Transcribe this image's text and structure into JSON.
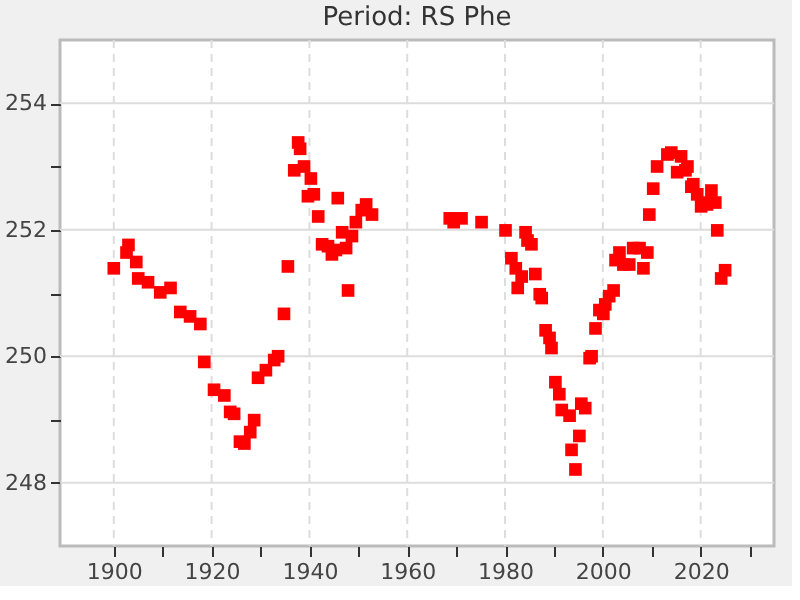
{
  "chart_data": {
    "type": "scatter",
    "title": "Period: RS Phe",
    "marker": "square",
    "grid": true,
    "xlim": [
      1889,
      2035
    ],
    "ylim": [
      247,
      255
    ],
    "xticks": [
      1900,
      {
        "value": 1910,
        "label": null
      },
      1920,
      {
        "value": 1930,
        "label": null
      },
      1940,
      {
        "value": 1950,
        "label": null
      },
      1960,
      {
        "value": 1970,
        "label": null
      },
      1980,
      {
        "value": 1990,
        "label": null
      },
      2000,
      {
        "value": 2010,
        "label": null
      },
      2020,
      {
        "value": 2030,
        "label": null
      }
    ],
    "yticks": [
      248,
      {
        "value": 249,
        "label": null
      },
      250,
      {
        "value": 251,
        "label": null
      },
      252,
      {
        "value": 253,
        "label": null
      },
      254
    ],
    "series": [
      {
        "color": "#ff0000",
        "x": [
          1900.0,
          1902.6,
          1903.0,
          1904.6,
          1905.0,
          1907.0,
          1909.5,
          1911.6,
          1913.6,
          1915.6,
          1917.7,
          1918.5,
          1920.5,
          1922.6,
          1923.8,
          1924.6,
          1925.8,
          1926.7,
          1927.9,
          1928.7,
          1929.5,
          1931.1,
          1932.8,
          1933.6,
          1934.8,
          1935.6,
          1936.9,
          1937.7,
          1938.1,
          1938.9,
          1939.7,
          1940.3,
          1940.9,
          1941.8,
          1942.6,
          1943.8,
          1944.6,
          1945.4,
          1945.8,
          1946.7,
          1947.5,
          1947.9,
          1948.7,
          1949.5,
          1950.7,
          1951.6,
          1952.8,
          1968.7,
          1969.5,
          1971.1,
          1975.2,
          1980.1,
          1981.3,
          1982.2,
          1982.6,
          1983.4,
          1984.2,
          1984.6,
          1985.4,
          1986.2,
          1987.1,
          1987.5,
          1988.3,
          1989.1,
          1989.5,
          1990.3,
          1991.1,
          1991.6,
          1993.2,
          1993.6,
          1994.4,
          1995.2,
          1995.6,
          1996.4,
          1997.3,
          1997.7,
          1998.5,
          1999.3,
          2000.1,
          2000.5,
          2001.3,
          2002.2,
          2002.6,
          2003.4,
          2004.2,
          2005.4,
          2006.2,
          2007.5,
          2008.3,
          2009.1,
          2009.5,
          2010.3,
          2011.1,
          2013.2,
          2014.0,
          2015.2,
          2016.0,
          2016.9,
          2017.3,
          2018.1,
          2018.5,
          2019.3,
          2020.1,
          2020.9,
          2021.3,
          2022.2,
          2023.0,
          2023.4,
          2024.2,
          2025.0
        ],
        "values": [
          251.39,
          251.64,
          251.76,
          251.49,
          251.23,
          251.17,
          251.01,
          251.08,
          250.7,
          250.63,
          250.51,
          249.91,
          249.47,
          249.38,
          249.12,
          249.09,
          248.65,
          248.62,
          248.8,
          248.99,
          249.66,
          249.78,
          249.94,
          250.0,
          250.67,
          251.42,
          252.94,
          253.38,
          253.28,
          253.0,
          252.53,
          252.81,
          252.56,
          252.21,
          251.77,
          251.74,
          251.61,
          251.68,
          252.5,
          251.96,
          251.71,
          251.04,
          251.9,
          252.12,
          252.31,
          252.4,
          252.24,
          252.18,
          252.12,
          252.18,
          252.12,
          251.99,
          251.55,
          251.39,
          251.08,
          251.26,
          251.96,
          251.83,
          251.77,
          251.3,
          250.98,
          250.92,
          250.41,
          250.29,
          250.13,
          249.59,
          249.4,
          249.15,
          249.06,
          248.52,
          248.21,
          248.74,
          249.25,
          249.18,
          249.97,
          250.0,
          250.44,
          250.73,
          250.67,
          250.82,
          250.95,
          251.04,
          251.52,
          251.64,
          251.45,
          251.45,
          251.71,
          251.71,
          251.39,
          251.64,
          252.24,
          252.65,
          253.0,
          253.19,
          253.22,
          252.91,
          253.16,
          252.94,
          253.0,
          252.68,
          252.72,
          252.56,
          252.37,
          252.43,
          252.4,
          252.62,
          252.43,
          251.99,
          251.23,
          251.36
        ]
      }
    ]
  }
}
